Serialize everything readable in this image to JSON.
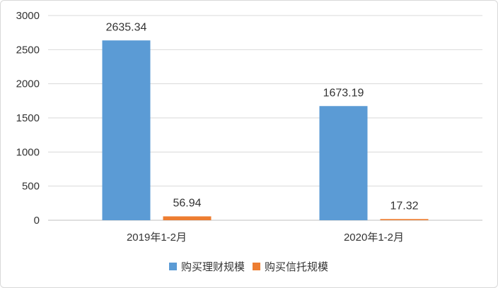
{
  "chart_data": {
    "type": "bar",
    "categories": [
      "2019年1-2月",
      "2020年1-2月"
    ],
    "series": [
      {
        "name": "购买理财规模",
        "values": [
          2635.34,
          1673.19
        ],
        "color": "#5b9bd5",
        "labels": [
          "2635.34",
          "1673.19"
        ]
      },
      {
        "name": "购买信托规模",
        "values": [
          56.94,
          17.32
        ],
        "color": "#ed7d31",
        "labels": [
          "56.94",
          "17.32"
        ]
      }
    ],
    "title": "",
    "xlabel": "",
    "ylabel": "",
    "ylim": [
      0,
      3000
    ],
    "yticks": [
      0,
      500,
      1000,
      1500,
      2000,
      2500,
      3000
    ],
    "grid": true,
    "legend_position": "bottom"
  }
}
